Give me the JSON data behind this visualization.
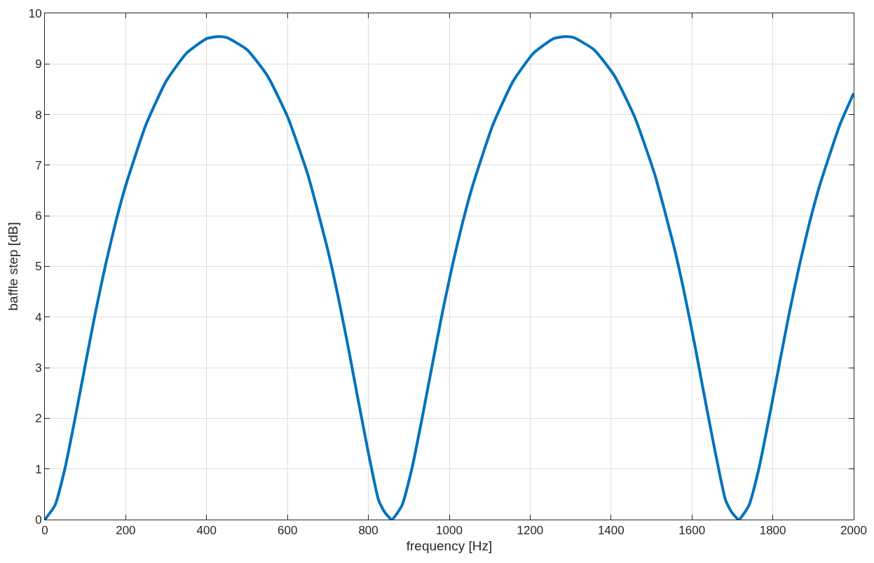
{
  "chart_data": {
    "type": "line",
    "xlabel": "frequency [Hz]",
    "ylabel": "baffle step [dB]",
    "x": [
      0,
      25,
      50,
      75,
      100,
      125,
      150,
      175,
      200,
      250,
      300,
      350,
      400,
      429,
      450,
      500,
      550,
      600,
      650,
      700,
      725,
      750,
      775,
      800,
      825,
      840,
      858,
      883,
      908,
      933,
      958,
      983,
      1008,
      1033,
      1058,
      1108,
      1158,
      1208,
      1258,
      1287,
      1308,
      1358,
      1408,
      1458,
      1508,
      1558,
      1583,
      1608,
      1633,
      1658,
      1683,
      1698,
      1716,
      1741,
      1766,
      1791,
      1816,
      1841,
      1866,
      1891,
      1916,
      1966,
      2000
    ],
    "series": [
      {
        "color": "#0072bd",
        "values": [
          0,
          0.28,
          1.02,
          2.01,
          3.06,
          4.09,
          5.03,
          5.87,
          6.6,
          7.8,
          8.66,
          9.21,
          9.5,
          9.54,
          9.52,
          9.28,
          8.77,
          7.96,
          6.82,
          5.31,
          4.41,
          3.41,
          2.35,
          1.32,
          0.39,
          0.15,
          0,
          0.28,
          1.02,
          2.01,
          3.06,
          4.09,
          5.03,
          5.87,
          6.6,
          7.8,
          8.66,
          9.21,
          9.5,
          9.54,
          9.52,
          9.28,
          8.77,
          7.96,
          6.82,
          5.31,
          4.41,
          3.41,
          2.35,
          1.32,
          0.39,
          0.15,
          0,
          0.28,
          1.02,
          2.01,
          3.06,
          4.09,
          5.03,
          5.87,
          6.6,
          7.8,
          8.42
        ]
      }
    ],
    "xlim": [
      0,
      2000
    ],
    "xticks": [
      0,
      200,
      400,
      600,
      800,
      1000,
      1200,
      1400,
      1600,
      1800,
      2000
    ],
    "ylim": [
      0,
      10
    ],
    "yticks": [
      0,
      1,
      2,
      3,
      4,
      5,
      6,
      7,
      8,
      9,
      10
    ],
    "grid": true,
    "marker": "none",
    "line_style": "solid"
  }
}
